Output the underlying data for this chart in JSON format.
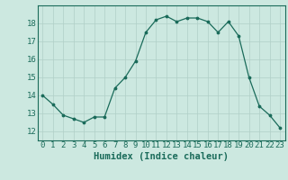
{
  "xlabel": "Humidex (Indice chaleur)",
  "x": [
    0,
    1,
    2,
    3,
    4,
    5,
    6,
    7,
    8,
    9,
    10,
    11,
    12,
    13,
    14,
    15,
    16,
    17,
    18,
    19,
    20,
    21,
    22,
    23
  ],
  "y": [
    14.0,
    13.5,
    12.9,
    12.7,
    12.5,
    12.8,
    12.8,
    14.4,
    15.0,
    15.9,
    17.5,
    18.2,
    18.4,
    18.1,
    18.3,
    18.3,
    18.1,
    17.5,
    18.1,
    17.3,
    15.0,
    13.4,
    12.9,
    12.2
  ],
  "line_color": "#1a6b5a",
  "marker_color": "#1a6b5a",
  "bg_color": "#cce8e0",
  "grid_color": "#b0cfc7",
  "axis_color": "#1a6b5a",
  "ylim": [
    11.5,
    19.0
  ],
  "xlim": [
    -0.5,
    23.5
  ],
  "yticks": [
    12,
    13,
    14,
    15,
    16,
    17,
    18
  ],
  "xticks": [
    0,
    1,
    2,
    3,
    4,
    5,
    6,
    7,
    8,
    9,
    10,
    11,
    12,
    13,
    14,
    15,
    16,
    17,
    18,
    19,
    20,
    21,
    22,
    23
  ],
  "tick_fontsize": 6.5,
  "label_fontsize": 7.5
}
